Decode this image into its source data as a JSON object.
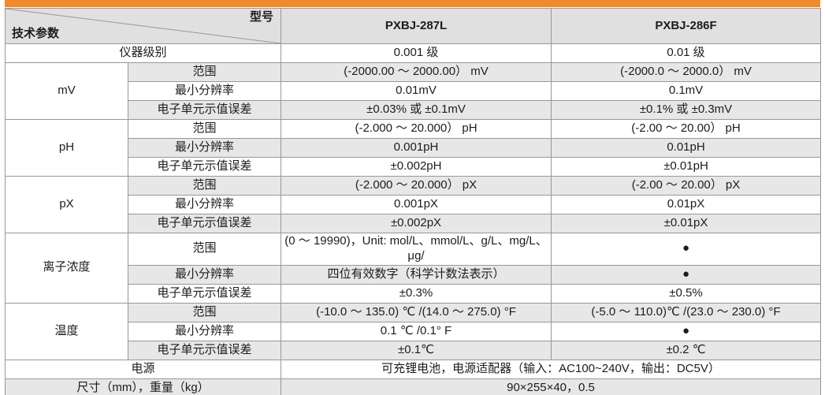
{
  "accent_color": "#ef8b2d",
  "shade_color": "#e7e7e7",
  "header_bg": "#e0e0e0",
  "table": {
    "corner": {
      "model_label": "型号",
      "param_label": "技术参数"
    },
    "columns": [
      "PXBJ-287L",
      "PXBJ-286F"
    ],
    "sections": [
      {
        "label": "仪器级别",
        "values": [
          "0.001 级",
          "0.01 级"
        ]
      },
      {
        "label": "mV",
        "rows": [
          {
            "param": "范围",
            "values": [
              "(-2000.00 ～ 2000.00） mV",
              "(-2000.0 ～ 2000.0） mV"
            ]
          },
          {
            "param": "最小分辨率",
            "values": [
              "0.01mV",
              "0.1mV"
            ]
          },
          {
            "param": "电子单元示值误差",
            "values": [
              "±0.03% 或 ±0.1mV",
              "±0.1% 或 ±0.3mV"
            ]
          }
        ]
      },
      {
        "label": "pH",
        "rows": [
          {
            "param": "范围",
            "values": [
              "(-2.000 ～ 20.000） pH",
              "(-2.00 ～ 20.00） pH"
            ]
          },
          {
            "param": "最小分辨率",
            "values": [
              "0.001pH",
              "0.01pH"
            ]
          },
          {
            "param": "电子单元示值误差",
            "values": [
              "±0.002pH",
              "±0.01pH"
            ]
          }
        ]
      },
      {
        "label": "pX",
        "rows": [
          {
            "param": "范围",
            "values": [
              "(-2.000 ～ 20.000） pX",
              "(-2.00 ～ 20.00） pX"
            ]
          },
          {
            "param": "最小分辨率",
            "values": [
              "0.001pX",
              "0.01pX"
            ]
          },
          {
            "param": "电子单元示值误差",
            "values": [
              "±0.002pX",
              "±0.01pX"
            ]
          }
        ]
      },
      {
        "label": "离子浓度",
        "rows": [
          {
            "param": "范围",
            "values": [
              "(0 ～ 19990)，Unit: mol/L、mmol/L、g/L、mg/L、μg/",
              "●"
            ]
          },
          {
            "param": "最小分辨率",
            "values": [
              "四位有效数字（科学计数法表示）",
              "●"
            ]
          },
          {
            "param": "电子单元示值误差",
            "values": [
              "±0.3%",
              "±0.5%"
            ]
          }
        ]
      },
      {
        "label": "温度",
        "rows": [
          {
            "param": "范围",
            "values": [
              "(-10.0 ～ 135.0) ℃ /(14.0 ～ 275.0) °F",
              "(-5.0 ～ 110.0)℃ /(23.0 ～ 230.0) °F"
            ]
          },
          {
            "param": "最小分辨率",
            "values": [
              "0.1 ℃ /0.1° F",
              "●"
            ]
          },
          {
            "param": "电子单元示值误差",
            "values": [
              "±0.1℃",
              "±0.2 ℃"
            ]
          }
        ]
      },
      {
        "label": "电源",
        "value": "可充锂电池，电源适配器（输入：AC100~240V，输出：DC5V）"
      },
      {
        "label": "尺寸（mm），重量（kg）",
        "value": "90×255×40，0.5"
      }
    ]
  }
}
